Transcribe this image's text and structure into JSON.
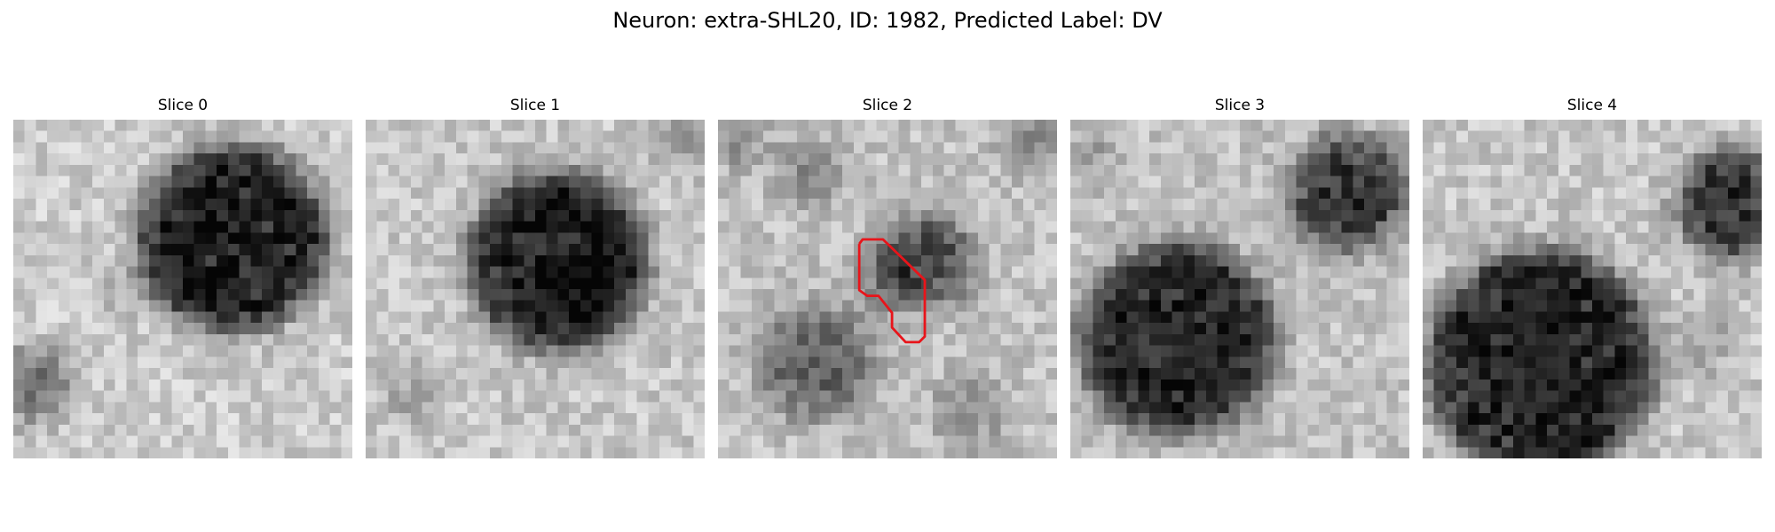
{
  "figure": {
    "title": "Neuron: extra-SHL20, ID: 1982, Predicted Label: DV"
  },
  "panels": [
    {
      "title": "Slice 0",
      "has_roi": false
    },
    {
      "title": "Slice 1",
      "has_roi": false
    },
    {
      "title": "Slice 2",
      "has_roi": true
    },
    {
      "title": "Slice 3",
      "has_roi": false
    },
    {
      "title": "Slice 4",
      "has_roi": false
    }
  ],
  "style": {
    "roi_color": "#e8141a",
    "colormap": "grayscale"
  }
}
